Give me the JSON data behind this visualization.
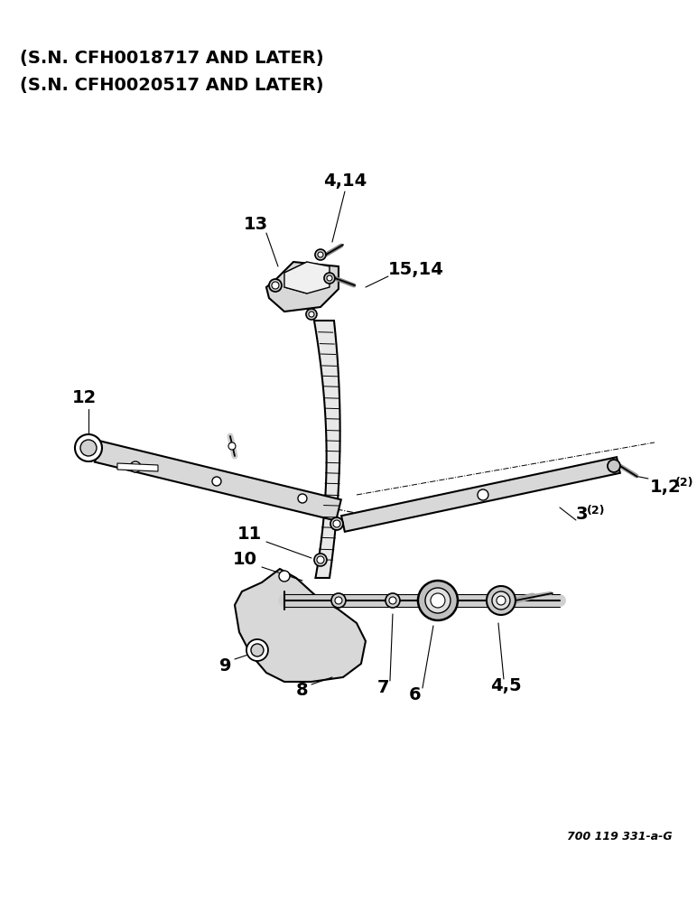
{
  "background_color": "#ffffff",
  "title_lines": [
    "(S.N. CFH0018717 AND LATER)",
    "(S.N. CFH0020517 AND LATER)"
  ],
  "title_fontsize": 14,
  "diagram_ref": "700 119 331-a-G",
  "label_fontsize": 14
}
